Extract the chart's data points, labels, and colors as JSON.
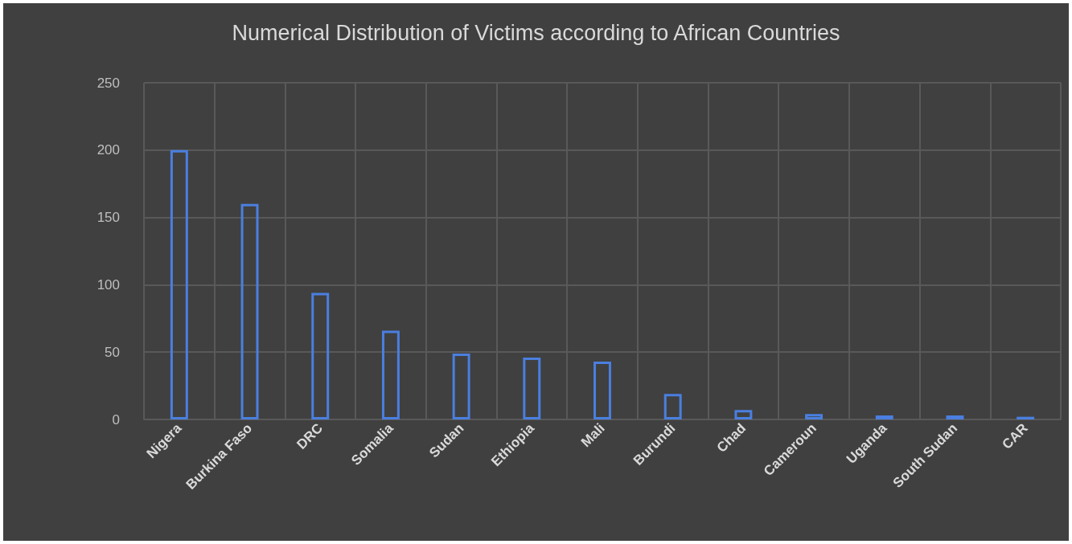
{
  "chart_data": {
    "type": "bar",
    "title": "Numerical Distribution of Victims according to African Countries",
    "categories": [
      "Nigera",
      "Burkina Faso",
      "DRC",
      "Somalia",
      "Sudan",
      "Ethiopia",
      "Mali",
      "Burundi",
      "Chad",
      "Cameroun",
      "Uganda",
      "South Sudan",
      "CAR"
    ],
    "values": [
      200,
      160,
      94,
      66,
      49,
      46,
      43,
      19,
      7,
      4,
      3,
      3,
      2
    ],
    "color": "#4a7fe0",
    "ylim": [
      0,
      250
    ],
    "yticks": [
      0,
      50,
      100,
      150,
      200,
      250
    ],
    "grid": true
  }
}
